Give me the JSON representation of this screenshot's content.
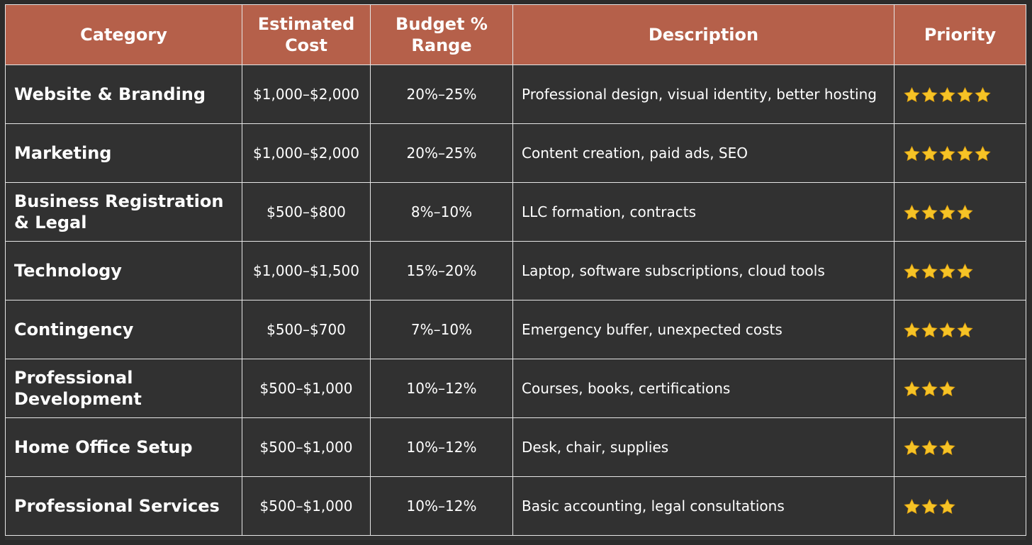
{
  "table": {
    "headers": {
      "category": "Category",
      "estimated_cost": "Estimated Cost",
      "budget_range": "Budget % Range",
      "description": "Description",
      "priority": "Priority"
    },
    "rows": [
      {
        "category": "Website & Branding",
        "cost": "$1,000–$2,000",
        "range": "20%–25%",
        "description": "Professional design, visual identity, better hosting",
        "stars": 5
      },
      {
        "category": "Marketing",
        "cost": "$1,000–$2,000",
        "range": "20%–25%",
        "description": "Content creation, paid ads, SEO",
        "stars": 5
      },
      {
        "category": "Business Registration & Legal",
        "cost": "$500–$800",
        "range": "8%–10%",
        "description": "LLC formation, contracts",
        "stars": 4
      },
      {
        "category": "Technology",
        "cost": "$1,000–$1,500",
        "range": "15%–20%",
        "description": "Laptop, software subscriptions, cloud tools",
        "stars": 4
      },
      {
        "category": "Contingency",
        "cost": "$500–$700",
        "range": "7%–10%",
        "description": "Emergency buffer, unexpected costs",
        "stars": 4
      },
      {
        "category": "Professional Development",
        "cost": "$500–$1,000",
        "range": "10%–12%",
        "description": "Courses, books, certifications",
        "stars": 3
      },
      {
        "category": "Home Office Setup",
        "cost": "$500–$1,000",
        "range": "10%–12%",
        "description": "Desk, chair, supplies",
        "stars": 3
      },
      {
        "category": "Professional Services",
        "cost": "$500–$1,000",
        "range": "10%–12%",
        "description": "Basic accounting, legal consultations",
        "stars": 3
      }
    ]
  },
  "colors": {
    "header_bg": "#b5604a",
    "body_bg": "#313131",
    "border": "#e6e6e6",
    "star": "#f6c326"
  },
  "icons": {
    "priority": "star-icon"
  }
}
